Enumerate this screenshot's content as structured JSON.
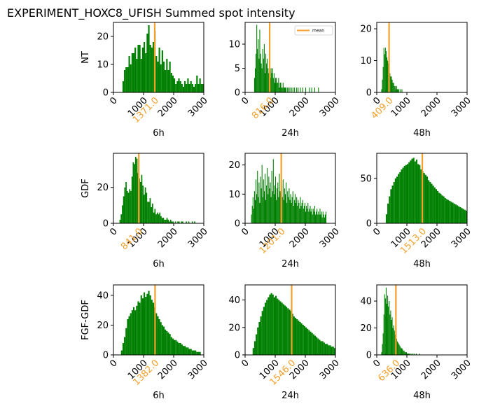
{
  "figure": {
    "title": "EXPERIMENT_HOXC8_UFISH  Summed spot intensity",
    "colors": {
      "bars": "#008000",
      "mean_line": "#f5a02a",
      "mean_label": "#f5a02a"
    }
  },
  "chart_data": [
    {
      "type": "bar",
      "row_label": "NT",
      "xlabel": "6h",
      "xlim": [
        0,
        3000
      ],
      "ylim": [
        0,
        25
      ],
      "xticks": [
        0,
        1000,
        2000,
        3000
      ],
      "yticks": [
        0,
        10,
        20
      ],
      "mean": 1371.0,
      "mean_label": "1371.0",
      "bins": {
        "start": 300,
        "width": 50,
        "counts": [
          4,
          8,
          9,
          9,
          13,
          10,
          14,
          14,
          16,
          12,
          17,
          17,
          12,
          16,
          18,
          14,
          21,
          24,
          17,
          16,
          18,
          22,
          13,
          11,
          16,
          10,
          15,
          11,
          8,
          12,
          8,
          11,
          7,
          6,
          5,
          3,
          4,
          5,
          4,
          3,
          2,
          4,
          3,
          5,
          3,
          4,
          3,
          2,
          3,
          6,
          3,
          5,
          3,
          3
        ]
      }
    },
    {
      "type": "bar",
      "row_label": "",
      "xlabel": "24h",
      "xlim": [
        0,
        3000
      ],
      "ylim": [
        0,
        14.5
      ],
      "xticks": [
        0,
        1000,
        2000,
        3000
      ],
      "yticks": [
        0,
        5,
        10
      ],
      "mean": 816.0,
      "mean_label": "816.0",
      "legend": [
        "mean"
      ],
      "bins": {
        "start": 300,
        "width": 25,
        "counts": [
          3,
          5,
          8,
          14,
          9,
          11,
          7,
          13,
          8,
          6,
          5,
          9,
          7,
          10,
          4,
          8,
          6,
          7,
          5,
          4,
          6,
          3,
          5,
          4,
          5,
          3,
          4,
          2,
          3,
          3,
          2,
          2,
          3,
          1,
          2,
          2,
          1,
          1,
          2,
          1,
          1,
          1,
          1,
          0,
          1,
          1,
          0,
          1,
          0,
          1,
          0,
          1,
          0,
          1,
          0,
          0,
          1,
          0,
          1,
          0,
          0,
          1,
          0,
          0,
          1,
          0,
          0,
          0,
          1,
          0,
          0,
          0,
          0,
          1,
          0,
          0,
          1,
          0,
          0,
          0,
          1,
          0,
          0,
          0,
          0,
          1,
          0
        ]
      }
    },
    {
      "type": "bar",
      "row_label": "",
      "xlabel": "48h",
      "xlim": [
        0,
        3000
      ],
      "ylim": [
        0,
        22
      ],
      "xticks": [
        0,
        1000,
        2000,
        3000
      ],
      "yticks": [
        0,
        10,
        20
      ],
      "mean": 409.0,
      "mean_label": "409.0",
      "bins": {
        "start": 150,
        "width": 25,
        "counts": [
          1,
          4,
          8,
          14,
          12,
          14,
          13,
          11,
          10,
          9,
          8,
          6,
          5,
          5,
          4,
          3,
          3,
          2,
          2,
          1,
          2,
          1,
          1,
          1,
          0,
          1,
          0,
          1
        ]
      }
    },
    {
      "type": "bar",
      "row_label": "GDF",
      "xlabel": "6h",
      "xlim": [
        0,
        3000
      ],
      "ylim": [
        0,
        39
      ],
      "xticks": [
        0,
        1000,
        2000,
        3000
      ],
      "yticks": [
        0,
        20
      ],
      "mean": 841.0,
      "mean_label": "841.0",
      "bins": {
        "start": 200,
        "width": 40,
        "counts": [
          2,
          5,
          10,
          15,
          20,
          23,
          18,
          17,
          19,
          18,
          26,
          34,
          33,
          37,
          36,
          28,
          25,
          23,
          27,
          21,
          16,
          20,
          17,
          12,
          12,
          14,
          9,
          11,
          6,
          8,
          5,
          6,
          5,
          6,
          4,
          3,
          3,
          2,
          2,
          3,
          2,
          1,
          2,
          1,
          1,
          0,
          1,
          0,
          1,
          1,
          0,
          1,
          1,
          0,
          0,
          1,
          0,
          1,
          0,
          0,
          1,
          0,
          1,
          0,
          0
        ]
      }
    },
    {
      "type": "bar",
      "row_label": "",
      "xlabel": "24h",
      "xlim": [
        0,
        3000
      ],
      "ylim": [
        0,
        24
      ],
      "xticks": [
        0,
        1000,
        2000,
        3000
      ],
      "yticks": [
        0,
        10,
        20
      ],
      "mean": 1201.0,
      "mean_label": "1201.0",
      "bins": {
        "start": 200,
        "width": 25,
        "counts": [
          3,
          6,
          9,
          5,
          11,
          8,
          15,
          10,
          18,
          9,
          14,
          7,
          16,
          12,
          20,
          9,
          15,
          11,
          17,
          8,
          13,
          19,
          10,
          16,
          12,
          14,
          9,
          18,
          11,
          22,
          10,
          13,
          16,
          8,
          12,
          14,
          9,
          17,
          11,
          10,
          13,
          9,
          15,
          8,
          12,
          10,
          14,
          7,
          11,
          9,
          12,
          8,
          10,
          7,
          9,
          11,
          6,
          8,
          10,
          7,
          9,
          6,
          8,
          7,
          5,
          9,
          6,
          7,
          8,
          5,
          6,
          7,
          4,
          6,
          5,
          7,
          4,
          5,
          6,
          4,
          5,
          3,
          5,
          4,
          6,
          3,
          4,
          5,
          3,
          4,
          3,
          5,
          3,
          4,
          2,
          4,
          3,
          2,
          3,
          4
        ]
      }
    },
    {
      "type": "bar",
      "row_label": "",
      "xlabel": "48h",
      "xlim": [
        0,
        3000
      ],
      "ylim": [
        0,
        78
      ],
      "xticks": [
        0,
        1000,
        2000,
        3000
      ],
      "yticks": [
        0,
        50
      ],
      "mean": 1513.0,
      "mean_label": "1513.0",
      "bins": {
        "start": 300,
        "width": 50,
        "counts": [
          10,
          22,
          30,
          38,
          42,
          46,
          50,
          52,
          55,
          57,
          60,
          62,
          64,
          65,
          66,
          68,
          70,
          72,
          73,
          69,
          71,
          66,
          65,
          60,
          58,
          56,
          54,
          52,
          48,
          46,
          44,
          42,
          40,
          38,
          36,
          34,
          33,
          31,
          30,
          28,
          27,
          26,
          25,
          24,
          23,
          22,
          21,
          20,
          19,
          18,
          17,
          16,
          15,
          14
        ]
      }
    },
    {
      "type": "bar",
      "row_label": "FGF-GDF",
      "xlabel": "6h",
      "xlim": [
        0,
        3000
      ],
      "ylim": [
        0,
        47
      ],
      "xticks": [
        0,
        1000,
        2000,
        3000
      ],
      "yticks": [
        0,
        20,
        40
      ],
      "mean": 1382.0,
      "mean_label": "1382.0",
      "bins": {
        "start": 250,
        "width": 50,
        "counts": [
          3,
          8,
          12,
          18,
          24,
          26,
          28,
          30,
          32,
          30,
          33,
          36,
          35,
          40,
          38,
          42,
          39,
          41,
          43,
          40,
          37,
          35,
          32,
          28,
          26,
          24,
          22,
          20,
          19,
          17,
          16,
          15,
          14,
          12,
          11,
          10,
          10,
          9,
          8,
          8,
          7,
          6,
          6,
          5,
          5,
          4,
          4,
          3,
          3,
          3,
          2,
          2,
          2
        ]
      }
    },
    {
      "type": "bar",
      "row_label": "",
      "xlabel": "24h",
      "xlim": [
        0,
        3000
      ],
      "ylim": [
        0,
        51
      ],
      "xticks": [
        0,
        1000,
        2000,
        3000
      ],
      "yticks": [
        0,
        20,
        40
      ],
      "mean": 1546.0,
      "mean_label": "1546.0",
      "bins": {
        "start": 250,
        "width": 50,
        "counts": [
          5,
          10,
          15,
          20,
          24,
          28,
          32,
          35,
          38,
          40,
          42,
          44,
          45,
          44,
          42,
          43,
          41,
          40,
          39,
          38,
          37,
          36,
          35,
          34,
          33,
          32,
          30,
          28,
          27,
          26,
          25,
          24,
          23,
          22,
          21,
          20,
          19,
          18,
          17,
          16,
          15,
          14,
          13,
          12,
          11,
          10,
          10,
          9,
          8,
          8,
          7,
          7,
          6,
          6,
          5
        ]
      }
    },
    {
      "type": "bar",
      "row_label": "",
      "xlabel": "48h",
      "xlim": [
        0,
        3000
      ],
      "ylim": [
        0,
        52
      ],
      "xticks": [
        0,
        1000,
        2000,
        3000
      ],
      "yticks": [
        0,
        20,
        40
      ],
      "mean": 636.0,
      "mean_label": "636.0",
      "bins": {
        "start": 150,
        "width": 25,
        "counts": [
          2,
          8,
          16,
          30,
          45,
          42,
          50,
          38,
          44,
          36,
          40,
          30,
          33,
          26,
          28,
          20,
          22,
          18,
          15,
          14,
          12,
          10,
          9,
          8,
          7,
          6,
          5,
          5,
          4,
          3,
          3,
          2,
          2,
          2,
          1,
          1,
          1,
          1,
          0,
          1,
          0,
          1,
          0,
          1,
          0,
          0,
          1,
          0,
          0,
          0,
          1
        ]
      }
    }
  ]
}
